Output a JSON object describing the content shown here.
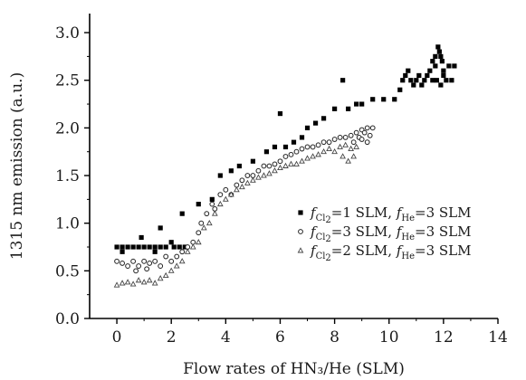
{
  "chart_data": {
    "type": "scatter",
    "xlabel": "Flow rates of HN₃/He (SLM)",
    "ylabel": "1315 nm emission (a.u.)",
    "xlim": [
      -1,
      14
    ],
    "ylim": [
      0,
      3.2
    ],
    "xticks": [
      0,
      2,
      4,
      6,
      8,
      10,
      12,
      14
    ],
    "yticks": [
      0.0,
      0.5,
      1.0,
      1.5,
      2.0,
      2.5,
      3.0
    ],
    "xtick_labels": [
      "0",
      "2",
      "4",
      "6",
      "8",
      "10",
      "12",
      "14"
    ],
    "ytick_labels": [
      "0.0",
      "0.5",
      "1.0",
      "1.5",
      "2.0",
      "2.5",
      "3.0"
    ],
    "grid": false,
    "legend_position": "center-right",
    "series": [
      {
        "marker": "square",
        "color": "#000000",
        "legend": {
          "f1": "f",
          "sub1": "Cl",
          "sub1b": "2",
          "mid": "=1 SLM, ",
          "f2": "f",
          "sub2": "He",
          "tail": "=3 SLM"
        },
        "points": [
          [
            0.0,
            0.75
          ],
          [
            0.2,
            0.75
          ],
          [
            0.4,
            0.75
          ],
          [
            0.6,
            0.75
          ],
          [
            0.8,
            0.75
          ],
          [
            1.0,
            0.75
          ],
          [
            1.2,
            0.75
          ],
          [
            1.4,
            0.75
          ],
          [
            1.6,
            0.75
          ],
          [
            1.8,
            0.75
          ],
          [
            0.2,
            0.7
          ],
          [
            0.9,
            0.85
          ],
          [
            1.4,
            0.7
          ],
          [
            1.6,
            0.95
          ],
          [
            2.0,
            0.8
          ],
          [
            2.1,
            0.75
          ],
          [
            2.3,
            0.75
          ],
          [
            2.5,
            0.75
          ],
          [
            2.4,
            1.1
          ],
          [
            3.0,
            1.2
          ],
          [
            3.5,
            1.25
          ],
          [
            3.8,
            1.5
          ],
          [
            4.2,
            1.55
          ],
          [
            4.5,
            1.6
          ],
          [
            5.0,
            1.65
          ],
          [
            5.5,
            1.75
          ],
          [
            5.8,
            1.8
          ],
          [
            6.0,
            2.15
          ],
          [
            6.2,
            1.8
          ],
          [
            6.5,
            1.85
          ],
          [
            6.8,
            1.9
          ],
          [
            7.0,
            2.0
          ],
          [
            7.3,
            2.05
          ],
          [
            7.6,
            2.1
          ],
          [
            8.0,
            2.2
          ],
          [
            8.3,
            2.5
          ],
          [
            8.5,
            2.2
          ],
          [
            8.8,
            2.25
          ],
          [
            9.0,
            2.25
          ],
          [
            9.4,
            2.3
          ],
          [
            9.8,
            2.3
          ],
          [
            10.2,
            2.3
          ],
          [
            10.4,
            2.4
          ],
          [
            10.5,
            2.5
          ],
          [
            10.6,
            2.55
          ],
          [
            10.7,
            2.6
          ],
          [
            10.8,
            2.5
          ],
          [
            10.9,
            2.45
          ],
          [
            11.0,
            2.5
          ],
          [
            11.1,
            2.55
          ],
          [
            11.2,
            2.45
          ],
          [
            11.3,
            2.5
          ],
          [
            11.4,
            2.55
          ],
          [
            11.5,
            2.6
          ],
          [
            11.6,
            2.5
          ],
          [
            11.7,
            2.65
          ],
          [
            11.8,
            2.85
          ],
          [
            11.85,
            2.8
          ],
          [
            11.9,
            2.75
          ],
          [
            11.95,
            2.7
          ],
          [
            12.0,
            2.6
          ],
          [
            12.1,
            2.5
          ],
          [
            12.2,
            2.65
          ],
          [
            12.3,
            2.5
          ],
          [
            12.4,
            2.65
          ],
          [
            11.6,
            2.7
          ],
          [
            11.7,
            2.75
          ],
          [
            11.75,
            2.5
          ],
          [
            12.0,
            2.55
          ],
          [
            11.9,
            2.45
          ]
        ]
      },
      {
        "marker": "circle",
        "color": "#000000",
        "legend": {
          "f1": "f",
          "sub1": "Cl",
          "sub1b": "2",
          "mid": "=3 SLM, ",
          "f2": "f",
          "sub2": "He",
          "tail": "=3 SLM"
        },
        "points": [
          [
            0.0,
            0.6
          ],
          [
            0.2,
            0.58
          ],
          [
            0.4,
            0.55
          ],
          [
            0.6,
            0.6
          ],
          [
            0.8,
            0.55
          ],
          [
            1.0,
            0.6
          ],
          [
            1.2,
            0.58
          ],
          [
            1.4,
            0.6
          ],
          [
            1.6,
            0.55
          ],
          [
            0.7,
            0.5
          ],
          [
            1.1,
            0.52
          ],
          [
            1.8,
            0.65
          ],
          [
            2.0,
            0.6
          ],
          [
            2.2,
            0.65
          ],
          [
            2.4,
            0.7
          ],
          [
            2.6,
            0.75
          ],
          [
            2.8,
            0.8
          ],
          [
            3.0,
            0.9
          ],
          [
            3.1,
            1.0
          ],
          [
            3.3,
            1.1
          ],
          [
            3.5,
            1.2
          ],
          [
            3.6,
            1.15
          ],
          [
            3.8,
            1.3
          ],
          [
            4.0,
            1.35
          ],
          [
            4.2,
            1.3
          ],
          [
            4.4,
            1.4
          ],
          [
            4.6,
            1.45
          ],
          [
            4.8,
            1.5
          ],
          [
            5.0,
            1.5
          ],
          [
            5.2,
            1.55
          ],
          [
            5.4,
            1.6
          ],
          [
            5.6,
            1.6
          ],
          [
            5.8,
            1.62
          ],
          [
            6.0,
            1.65
          ],
          [
            6.2,
            1.7
          ],
          [
            6.4,
            1.72
          ],
          [
            6.6,
            1.75
          ],
          [
            6.8,
            1.78
          ],
          [
            7.0,
            1.8
          ],
          [
            7.2,
            1.8
          ],
          [
            7.4,
            1.82
          ],
          [
            7.6,
            1.85
          ],
          [
            7.8,
            1.85
          ],
          [
            8.0,
            1.88
          ],
          [
            8.2,
            1.9
          ],
          [
            8.4,
            1.9
          ],
          [
            8.6,
            1.92
          ],
          [
            8.8,
            1.95
          ],
          [
            9.0,
            1.98
          ],
          [
            9.2,
            2.0
          ],
          [
            9.4,
            2.0
          ],
          [
            8.7,
            1.85
          ],
          [
            8.9,
            1.9
          ],
          [
            9.1,
            1.95
          ],
          [
            9.3,
            1.92
          ],
          [
            9.0,
            1.88
          ],
          [
            9.2,
            1.85
          ]
        ]
      },
      {
        "marker": "triangle",
        "color": "#000000",
        "legend": {
          "f1": "f",
          "sub1": "Cl",
          "sub1b": "2",
          "mid": "=2 SLM, ",
          "f2": "f",
          "sub2": "He",
          "tail": "=3 SLM"
        },
        "points": [
          [
            0.0,
            0.35
          ],
          [
            0.2,
            0.37
          ],
          [
            0.4,
            0.38
          ],
          [
            0.6,
            0.36
          ],
          [
            0.8,
            0.4
          ],
          [
            1.0,
            0.38
          ],
          [
            1.2,
            0.4
          ],
          [
            1.4,
            0.37
          ],
          [
            1.6,
            0.42
          ],
          [
            1.8,
            0.45
          ],
          [
            2.0,
            0.5
          ],
          [
            2.2,
            0.55
          ],
          [
            2.4,
            0.6
          ],
          [
            2.6,
            0.7
          ],
          [
            2.8,
            0.75
          ],
          [
            3.0,
            0.8
          ],
          [
            3.2,
            0.95
          ],
          [
            3.4,
            1.0
          ],
          [
            3.6,
            1.1
          ],
          [
            3.8,
            1.2
          ],
          [
            4.0,
            1.25
          ],
          [
            4.2,
            1.3
          ],
          [
            4.4,
            1.35
          ],
          [
            4.6,
            1.38
          ],
          [
            4.8,
            1.42
          ],
          [
            5.0,
            1.45
          ],
          [
            5.2,
            1.48
          ],
          [
            5.4,
            1.5
          ],
          [
            5.6,
            1.52
          ],
          [
            5.8,
            1.55
          ],
          [
            6.0,
            1.58
          ],
          [
            6.2,
            1.6
          ],
          [
            6.4,
            1.62
          ],
          [
            6.6,
            1.62
          ],
          [
            6.8,
            1.65
          ],
          [
            7.0,
            1.68
          ],
          [
            7.2,
            1.7
          ],
          [
            7.4,
            1.72
          ],
          [
            7.6,
            1.75
          ],
          [
            7.8,
            1.78
          ],
          [
            8.0,
            1.75
          ],
          [
            8.2,
            1.8
          ],
          [
            8.4,
            1.82
          ],
          [
            8.6,
            1.78
          ],
          [
            8.8,
            1.8
          ],
          [
            8.5,
            1.65
          ],
          [
            8.7,
            1.7
          ],
          [
            8.3,
            1.7
          ]
        ]
      }
    ]
  }
}
